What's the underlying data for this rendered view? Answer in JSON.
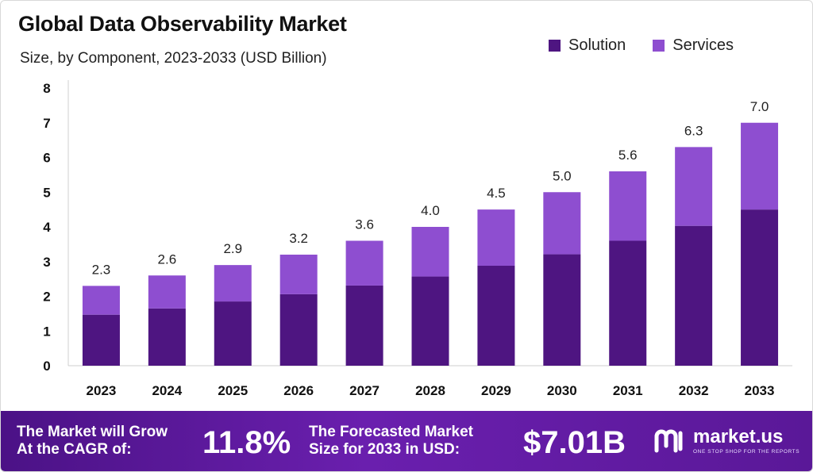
{
  "header": {
    "title": "Global Data Observability Market",
    "subtitle": "Size, by Component, 2023-2033 (USD Billion)"
  },
  "legend": {
    "items": [
      {
        "label": "Solution",
        "color": "#4e1581"
      },
      {
        "label": "Services",
        "color": "#8e4ed0"
      }
    ]
  },
  "chart_data": {
    "type": "bar",
    "stacked": true,
    "categories": [
      "2023",
      "2024",
      "2025",
      "2026",
      "2027",
      "2028",
      "2029",
      "2030",
      "2031",
      "2032",
      "2033"
    ],
    "series": [
      {
        "name": "Solution",
        "color": "#4e1581",
        "values": [
          1.47,
          1.65,
          1.85,
          2.06,
          2.31,
          2.57,
          2.88,
          3.21,
          3.6,
          4.03,
          4.5
        ]
      },
      {
        "name": "Services",
        "color": "#8e4ed0",
        "values": [
          0.83,
          0.95,
          1.05,
          1.14,
          1.29,
          1.43,
          1.62,
          1.79,
          2.0,
          2.27,
          2.5
        ]
      }
    ],
    "totals": [
      "2.3",
      "2.6",
      "2.9",
      "3.2",
      "3.6",
      "4.0",
      "4.5",
      "5.0",
      "5.6",
      "6.3",
      "7.0"
    ],
    "yticks": [
      "0",
      "1",
      "2",
      "3",
      "4",
      "5",
      "6",
      "7",
      "8"
    ],
    "ylim": [
      0,
      8
    ],
    "grid": false,
    "legend_position": "top-right"
  },
  "banner": {
    "cagr_text_line1": "The Market will Grow",
    "cagr_text_line2": "At the CAGR of:",
    "cagr_value": "11.8%",
    "forecast_text_line1": "The Forecasted Market",
    "forecast_text_line2": "Size for 2033 in USD:",
    "forecast_value": "$7.01B",
    "logo_name": "market.us",
    "logo_tagline": "ONE STOP SHOP FOR THE REPORTS",
    "logo_icon": "market-us-logo-icon"
  }
}
